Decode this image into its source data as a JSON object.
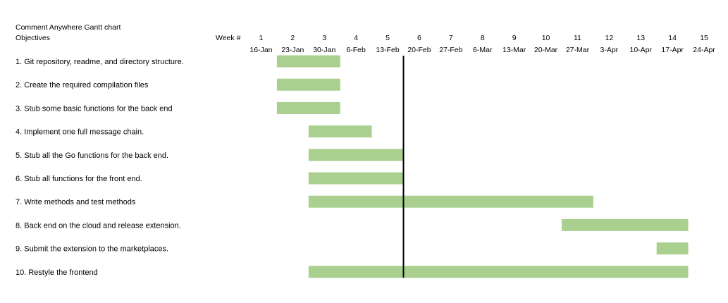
{
  "chart_data": {
    "type": "bar",
    "title": "Comment Anywhere Gantt chart",
    "objectives_label": "Objectives",
    "week_label": "Week #",
    "weeks": [
      1,
      2,
      3,
      4,
      5,
      6,
      7,
      8,
      9,
      10,
      11,
      12,
      13,
      14,
      15
    ],
    "dates": [
      "16-Jan",
      "23-Jan",
      "30-Jan",
      "6-Feb",
      "13-Feb",
      "20-Feb",
      "27-Feb",
      "6-Mar",
      "13-Mar",
      "20-Mar",
      "27-Mar",
      "3-Apr",
      "10-Apr",
      "17-Apr",
      "24-Apr"
    ],
    "tasks": [
      {
        "name": "1. Git repository, readme, and directory structure.",
        "start": 2,
        "end": 3
      },
      {
        "name": "2. Create the required compilation files",
        "start": 2,
        "end": 3
      },
      {
        "name": "3. Stub some basic functions for the back end",
        "start": 2,
        "end": 3
      },
      {
        "name": "4. Implement one full message chain.",
        "start": 3,
        "end": 4
      },
      {
        "name": "5. Stub all the Go functions for the back end.",
        "start": 3,
        "end": 5
      },
      {
        "name": "6. Stub all functions for the front end.",
        "start": 3,
        "end": 5
      },
      {
        "name": "7. Write methods and test methods",
        "start": 3,
        "end": 11
      },
      {
        "name": "8. Back end on the cloud and release extension.",
        "start": 11,
        "end": 14
      },
      {
        "name": "9. Submit the extension to the marketplaces.",
        "start": 14,
        "end": 14
      },
      {
        "name": "10. Restyle the frontend",
        "start": 3,
        "end": 14
      }
    ],
    "current_week_marker": 5,
    "bar_color": "#a9d08e",
    "marker_color": "#000000"
  }
}
